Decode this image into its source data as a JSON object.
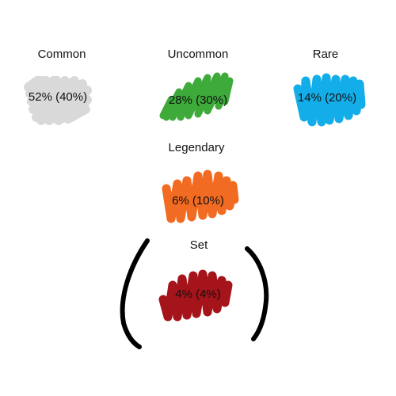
{
  "tiers": [
    {
      "label": "Common",
      "value": "52% (40%)",
      "color": "#d9d9d9"
    },
    {
      "label": "Uncommon",
      "value": "28% (30%)",
      "color": "#3daa3a"
    },
    {
      "label": "Rare",
      "value": "14% (20%)",
      "color": "#13aee9"
    },
    {
      "label": "Legendary",
      "value": "6% (10%)",
      "color": "#f26b22"
    },
    {
      "label": "Set",
      "value": "4% (4%)",
      "color": "#a5141a"
    }
  ],
  "bracket_color": "#000000"
}
